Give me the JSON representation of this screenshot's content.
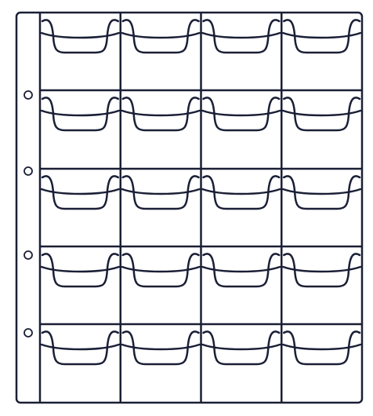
{
  "sheet": {
    "rows": 5,
    "columns": 4,
    "punch_holes": 4,
    "colors": {
      "ink": "#1a1f36",
      "paper": "#ffffff"
    }
  }
}
